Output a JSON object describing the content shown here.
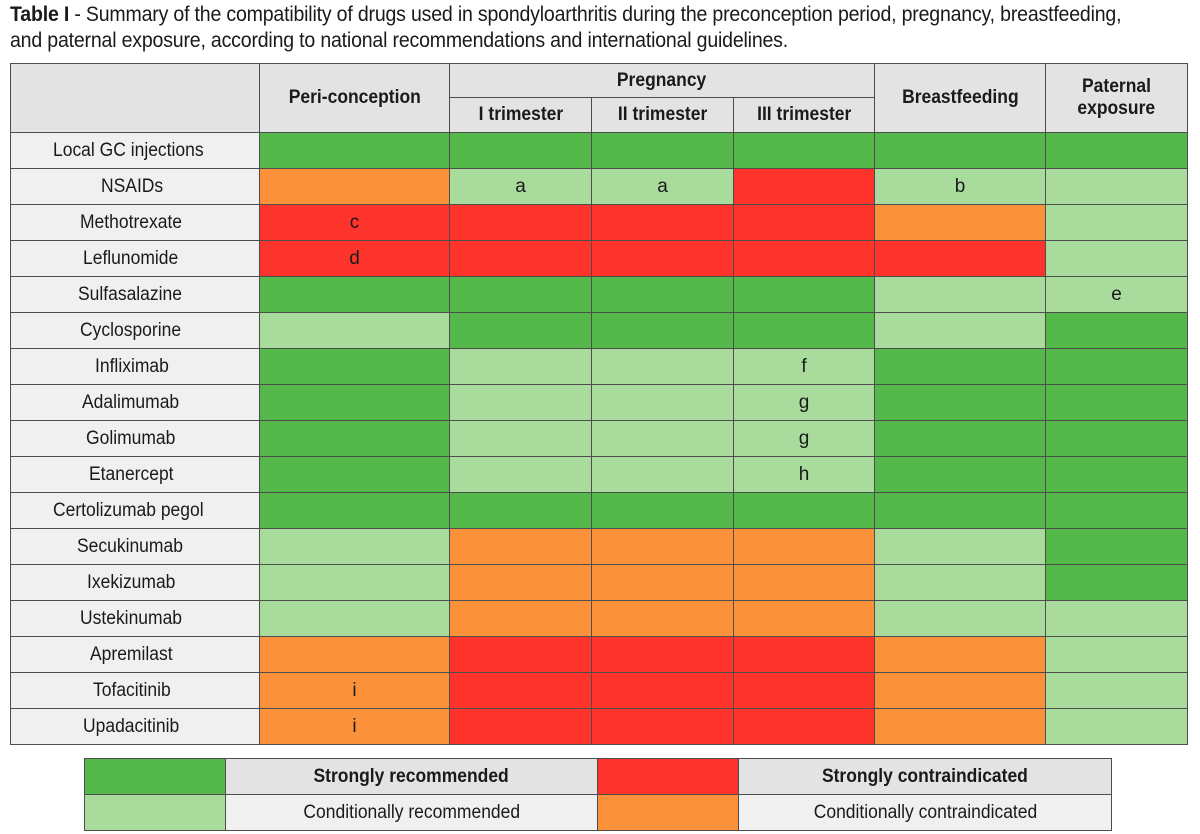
{
  "caption": {
    "label": "Table I",
    "text_line1": " - Summary of the compatibility of drugs used in spondyloarthritis during the preconception period, pregnancy, breastfeeding,",
    "text_line2": "and paternal exposure, according to national recommendations and international guidelines."
  },
  "headers": {
    "peri_conception": "Peri-conception",
    "pregnancy": "Pregnancy",
    "trimester_1": "I trimester",
    "trimester_2": "II trimester",
    "trimester_3": "III trimester",
    "breastfeeding": "Breastfeeding",
    "paternal_line1": "Paternal",
    "paternal_line2": "exposure"
  },
  "colors": {
    "strongly_recommended": "#55b84b",
    "conditionally_recommended": "#a9db9c",
    "conditionally_contraindicated": "#fb923a",
    "strongly_contraindicated": "#fe332b"
  },
  "rows": [
    {
      "drug": "Local GC injections",
      "cells": [
        {
          "s": "sr",
          "n": ""
        },
        {
          "s": "sr",
          "n": ""
        },
        {
          "s": "sr",
          "n": ""
        },
        {
          "s": "sr",
          "n": ""
        },
        {
          "s": "sr",
          "n": ""
        },
        {
          "s": "sr",
          "n": ""
        }
      ]
    },
    {
      "drug": "NSAIDs",
      "cells": [
        {
          "s": "ci",
          "n": ""
        },
        {
          "s": "cr",
          "n": "a"
        },
        {
          "s": "cr",
          "n": "a"
        },
        {
          "s": "sc",
          "n": ""
        },
        {
          "s": "cr",
          "n": "b"
        },
        {
          "s": "cr",
          "n": ""
        }
      ]
    },
    {
      "drug": "Methotrexate",
      "cells": [
        {
          "s": "sc",
          "n": "c"
        },
        {
          "s": "sc",
          "n": ""
        },
        {
          "s": "sc",
          "n": ""
        },
        {
          "s": "sc",
          "n": ""
        },
        {
          "s": "ci",
          "n": ""
        },
        {
          "s": "cr",
          "n": ""
        }
      ]
    },
    {
      "drug": "Leflunomide",
      "cells": [
        {
          "s": "sc",
          "n": "d"
        },
        {
          "s": "sc",
          "n": ""
        },
        {
          "s": "sc",
          "n": ""
        },
        {
          "s": "sc",
          "n": ""
        },
        {
          "s": "sc",
          "n": ""
        },
        {
          "s": "cr",
          "n": ""
        }
      ]
    },
    {
      "drug": "Sulfasalazine",
      "cells": [
        {
          "s": "sr",
          "n": ""
        },
        {
          "s": "sr",
          "n": ""
        },
        {
          "s": "sr",
          "n": ""
        },
        {
          "s": "sr",
          "n": ""
        },
        {
          "s": "cr",
          "n": ""
        },
        {
          "s": "cr",
          "n": "e"
        }
      ]
    },
    {
      "drug": "Cyclosporine",
      "cells": [
        {
          "s": "cr",
          "n": ""
        },
        {
          "s": "sr",
          "n": ""
        },
        {
          "s": "sr",
          "n": ""
        },
        {
          "s": "sr",
          "n": ""
        },
        {
          "s": "cr",
          "n": ""
        },
        {
          "s": "sr",
          "n": ""
        }
      ]
    },
    {
      "drug": "Infliximab",
      "cells": [
        {
          "s": "sr",
          "n": ""
        },
        {
          "s": "cr",
          "n": ""
        },
        {
          "s": "cr",
          "n": ""
        },
        {
          "s": "cr",
          "n": "f"
        },
        {
          "s": "sr",
          "n": ""
        },
        {
          "s": "sr",
          "n": ""
        }
      ]
    },
    {
      "drug": "Adalimumab",
      "cells": [
        {
          "s": "sr",
          "n": ""
        },
        {
          "s": "cr",
          "n": ""
        },
        {
          "s": "cr",
          "n": ""
        },
        {
          "s": "cr",
          "n": "g"
        },
        {
          "s": "sr",
          "n": ""
        },
        {
          "s": "sr",
          "n": ""
        }
      ]
    },
    {
      "drug": "Golimumab",
      "cells": [
        {
          "s": "sr",
          "n": ""
        },
        {
          "s": "cr",
          "n": ""
        },
        {
          "s": "cr",
          "n": ""
        },
        {
          "s": "cr",
          "n": "g"
        },
        {
          "s": "sr",
          "n": ""
        },
        {
          "s": "sr",
          "n": ""
        }
      ]
    },
    {
      "drug": "Etanercept",
      "cells": [
        {
          "s": "sr",
          "n": ""
        },
        {
          "s": "cr",
          "n": ""
        },
        {
          "s": "cr",
          "n": ""
        },
        {
          "s": "cr",
          "n": "h"
        },
        {
          "s": "sr",
          "n": ""
        },
        {
          "s": "sr",
          "n": ""
        }
      ]
    },
    {
      "drug": "Certolizumab pegol",
      "cells": [
        {
          "s": "sr",
          "n": ""
        },
        {
          "s": "sr",
          "n": ""
        },
        {
          "s": "sr",
          "n": ""
        },
        {
          "s": "sr",
          "n": ""
        },
        {
          "s": "sr",
          "n": ""
        },
        {
          "s": "sr",
          "n": ""
        }
      ]
    },
    {
      "drug": "Secukinumab",
      "cells": [
        {
          "s": "cr",
          "n": ""
        },
        {
          "s": "ci",
          "n": ""
        },
        {
          "s": "ci",
          "n": ""
        },
        {
          "s": "ci",
          "n": ""
        },
        {
          "s": "cr",
          "n": ""
        },
        {
          "s": "sr",
          "n": ""
        }
      ]
    },
    {
      "drug": "Ixekizumab",
      "cells": [
        {
          "s": "cr",
          "n": ""
        },
        {
          "s": "ci",
          "n": ""
        },
        {
          "s": "ci",
          "n": ""
        },
        {
          "s": "ci",
          "n": ""
        },
        {
          "s": "cr",
          "n": ""
        },
        {
          "s": "sr",
          "n": ""
        }
      ]
    },
    {
      "drug": "Ustekinumab",
      "cells": [
        {
          "s": "cr",
          "n": ""
        },
        {
          "s": "ci",
          "n": ""
        },
        {
          "s": "ci",
          "n": ""
        },
        {
          "s": "ci",
          "n": ""
        },
        {
          "s": "cr",
          "n": ""
        },
        {
          "s": "cr",
          "n": ""
        }
      ]
    },
    {
      "drug": "Apremilast",
      "cells": [
        {
          "s": "ci",
          "n": ""
        },
        {
          "s": "sc",
          "n": ""
        },
        {
          "s": "sc",
          "n": ""
        },
        {
          "s": "sc",
          "n": ""
        },
        {
          "s": "ci",
          "n": ""
        },
        {
          "s": "cr",
          "n": ""
        }
      ]
    },
    {
      "drug": "Tofacitinib",
      "cells": [
        {
          "s": "ci",
          "n": "i"
        },
        {
          "s": "sc",
          "n": ""
        },
        {
          "s": "sc",
          "n": ""
        },
        {
          "s": "sc",
          "n": ""
        },
        {
          "s": "ci",
          "n": ""
        },
        {
          "s": "cr",
          "n": ""
        }
      ]
    },
    {
      "drug": "Upadacitinib",
      "cells": [
        {
          "s": "ci",
          "n": "i"
        },
        {
          "s": "sc",
          "n": ""
        },
        {
          "s": "sc",
          "n": ""
        },
        {
          "s": "sc",
          "n": ""
        },
        {
          "s": "ci",
          "n": ""
        },
        {
          "s": "cr",
          "n": ""
        }
      ]
    }
  ],
  "legend": {
    "strongly_recommended": "Strongly recommended",
    "strongly_contraindicated": "Strongly contraindicated",
    "conditionally_recommended": "Conditionally recommended",
    "conditionally_contraindicated": "Conditionally contraindicated"
  }
}
